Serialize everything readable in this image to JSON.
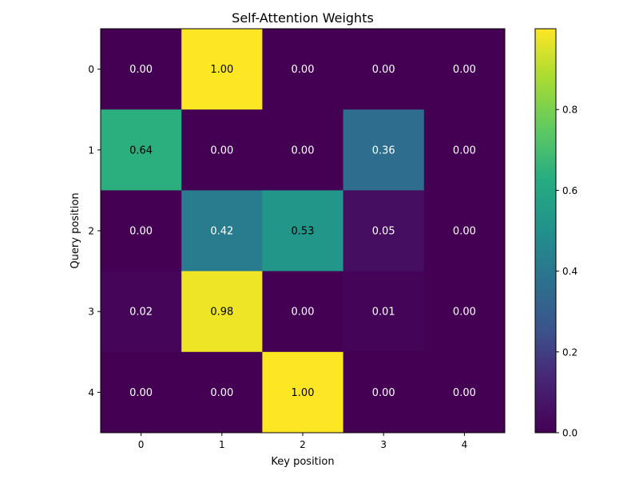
{
  "chart_data": {
    "type": "heatmap",
    "title": "Self-Attention Weights",
    "xlabel": "Key position",
    "ylabel": "Query position",
    "x_ticks": [
      "0",
      "1",
      "2",
      "3",
      "4"
    ],
    "y_ticks": [
      "0",
      "1",
      "2",
      "3",
      "4"
    ],
    "values": [
      [
        0.0,
        1.0,
        0.0,
        0.0,
        0.0
      ],
      [
        0.64,
        0.0,
        0.0,
        0.36,
        0.0
      ],
      [
        0.0,
        0.42,
        0.53,
        0.05,
        0.0
      ],
      [
        0.02,
        0.98,
        0.0,
        0.01,
        0.0
      ],
      [
        0.0,
        0.0,
        1.0,
        0.0,
        0.0
      ]
    ],
    "cell_labels": [
      [
        "0.00",
        "1.00",
        "0.00",
        "0.00",
        "0.00"
      ],
      [
        "0.64",
        "0.00",
        "0.00",
        "0.36",
        "0.00"
      ],
      [
        "0.00",
        "0.42",
        "0.53",
        "0.05",
        "0.00"
      ],
      [
        "0.02",
        "0.98",
        "0.00",
        "0.01",
        "0.00"
      ],
      [
        "0.00",
        "0.00",
        "1.00",
        "0.00",
        "0.00"
      ]
    ],
    "colormap": "viridis",
    "vmin": 0.0,
    "vmax": 1.0,
    "colorbar_ticks": [
      "0.0",
      "0.2",
      "0.4",
      "0.6",
      "0.8"
    ],
    "colorbar_tick_values": [
      0.0,
      0.2,
      0.4,
      0.6,
      0.8
    ],
    "grid": false
  }
}
